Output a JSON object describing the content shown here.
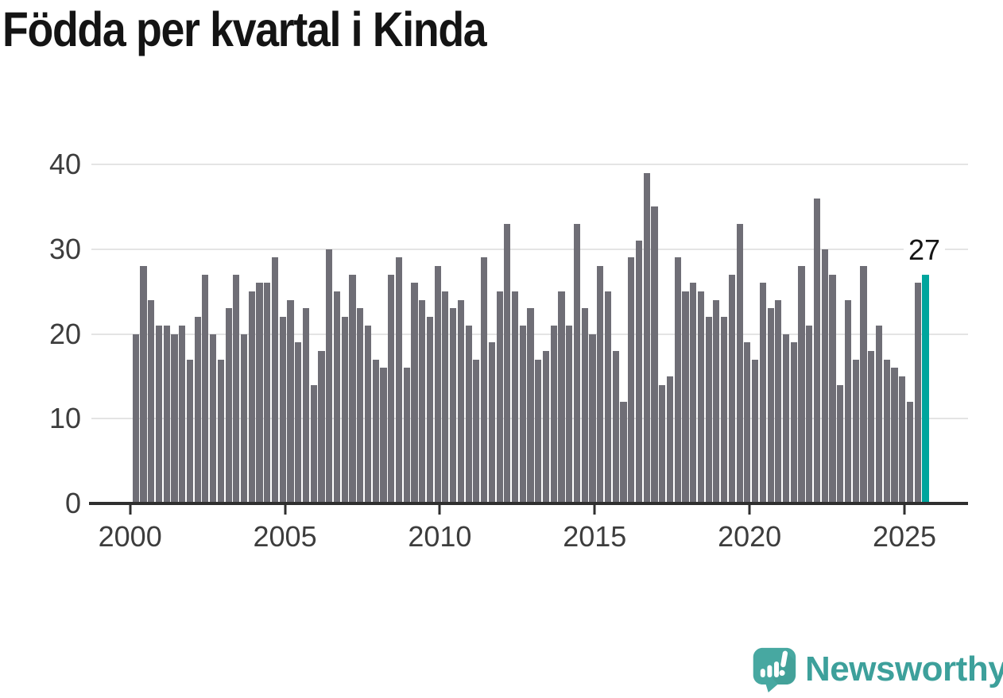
{
  "title": "Födda per kvartal i Kinda",
  "chart_data": {
    "type": "bar",
    "title": "Födda per kvartal i Kinda",
    "x_unit": "quarter",
    "x_start": "2000 Q1",
    "x_end": "2025 Q3",
    "start_year": 2000,
    "x_tick_labels": [
      "2000",
      "2005",
      "2010",
      "2015",
      "2020",
      "2025"
    ],
    "y_tick_labels": [
      "0",
      "10",
      "20",
      "30",
      "40"
    ],
    "y_ticks": [
      0,
      10,
      20,
      30,
      40
    ],
    "ylim": [
      0,
      41
    ],
    "grid": "horizontal",
    "legend": "none",
    "bar_color": "#6f6e76",
    "highlight_color": "#00a59d",
    "highlight_index": 102,
    "highlight_label": "27",
    "values": [
      20,
      28,
      24,
      21,
      21,
      20,
      21,
      17,
      22,
      27,
      20,
      17,
      23,
      27,
      20,
      25,
      26,
      26,
      29,
      22,
      24,
      19,
      23,
      14,
      18,
      30,
      25,
      22,
      27,
      23,
      21,
      17,
      16,
      27,
      29,
      16,
      26,
      24,
      22,
      28,
      25,
      23,
      24,
      21,
      17,
      29,
      19,
      25,
      33,
      25,
      21,
      23,
      17,
      18,
      21,
      25,
      21,
      33,
      23,
      20,
      28,
      25,
      18,
      12,
      29,
      31,
      39,
      35,
      14,
      15,
      29,
      25,
      26,
      25,
      22,
      24,
      22,
      27,
      33,
      19,
      17,
      26,
      23,
      24,
      20,
      19,
      28,
      21,
      36,
      30,
      27,
      14,
      24,
      17,
      28,
      18,
      21,
      17,
      16,
      15,
      12,
      26,
      27
    ]
  },
  "logo": {
    "text": "Newsworthy",
    "icon": "newsworthy-speech-bubble-chart-icon",
    "color": "#3da09b"
  }
}
